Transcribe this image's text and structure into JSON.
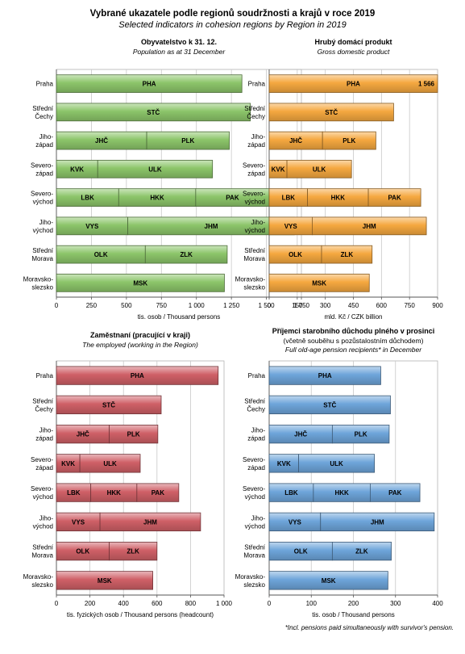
{
  "title": "Vybrané ukazatele podle regionů soudržnosti a krajů v roce 2019",
  "subtitle": "Selected indicators in cohesion regions by Region in 2019",
  "footnote": "*Incl. pensions paid simultaneously with survivor's pension.",
  "regions": [
    {
      "label": [
        "Praha"
      ]
    },
    {
      "label": [
        "Střední",
        "Čechy"
      ]
    },
    {
      "label": [
        "Jiho-",
        "západ"
      ]
    },
    {
      "label": [
        "Severo-",
        "západ"
      ]
    },
    {
      "label": [
        "Severo-",
        "východ"
      ]
    },
    {
      "label": [
        "Jiho-",
        "východ"
      ]
    },
    {
      "label": [
        "Střední",
        "Morava"
      ]
    },
    {
      "label": [
        "Moravsko-",
        "slezsko"
      ]
    }
  ],
  "chart_data": [
    {
      "type": "bar",
      "stacked": true,
      "title": "Obyvatelstvo k 31. 12.",
      "title_lines": [
        "Population as at 31 December"
      ],
      "xlabel": "tis. osob / Thousand persons",
      "xlim": [
        0,
        1750
      ],
      "xticks": [
        0,
        250,
        500,
        750,
        1000,
        1250,
        1500,
        1750
      ],
      "xtick_labels": [
        "0",
        "250",
        "500",
        "750",
        "1 000",
        "1 250",
        "1 500",
        "1 750"
      ],
      "color": "#8cc56a",
      "grid": true,
      "categories": [
        "Praha",
        "Střední Čechy",
        "Jihozápad",
        "Severozápad",
        "Severovýchod",
        "Jihovýchod",
        "Střední Morava",
        "Moravskoslezsko"
      ],
      "bars": [
        [
          {
            "code": "PHA",
            "value": 1325
          }
        ],
        [
          {
            "code": "STČ",
            "value": 1385
          }
        ],
        [
          {
            "code": "JHČ",
            "value": 645
          },
          {
            "code": "PLK",
            "value": 590
          }
        ],
        [
          {
            "code": "KVK",
            "value": 295
          },
          {
            "code": "ULK",
            "value": 820
          }
        ],
        [
          {
            "code": "LBK",
            "value": 445
          },
          {
            "code": "HKK",
            "value": 550
          },
          {
            "code": "PAK",
            "value": 525
          }
        ],
        [
          {
            "code": "VYS",
            "value": 510
          },
          {
            "code": "JHM",
            "value": 1190
          }
        ],
        [
          {
            "code": "OLK",
            "value": 635
          },
          {
            "code": "ZLK",
            "value": 585
          }
        ],
        [
          {
            "code": "MSK",
            "value": 1200
          }
        ]
      ]
    },
    {
      "type": "bar",
      "stacked": true,
      "title": "Hrubý domácí produkt",
      "title_lines": [
        "Gross domestic product"
      ],
      "xlabel": "mld. Kč / CZK billion",
      "xlim": [
        0,
        900
      ],
      "xticks": [
        0,
        150,
        300,
        450,
        600,
        750,
        900
      ],
      "xtick_labels": [
        "0",
        "150",
        "300",
        "450",
        "600",
        "750",
        "900"
      ],
      "color": "#f5a840",
      "grid": true,
      "categories": [
        "Praha",
        "Střední Čechy",
        "Jihozápad",
        "Severozápad",
        "Severovýchod",
        "Jihovýchod",
        "Střední Morava",
        "Moravskoslezsko"
      ],
      "bars": [
        [
          {
            "code": "PHA",
            "value": 1566,
            "value_label": "1 566"
          }
        ],
        [
          {
            "code": "STČ",
            "value": 665
          }
        ],
        [
          {
            "code": "JHČ",
            "value": 285
          },
          {
            "code": "PLK",
            "value": 285
          }
        ],
        [
          {
            "code": "KVK",
            "value": 95
          },
          {
            "code": "ULK",
            "value": 345
          }
        ],
        [
          {
            "code": "LBK",
            "value": 205
          },
          {
            "code": "HKK",
            "value": 325
          },
          {
            "code": "PAK",
            "value": 280
          }
        ],
        [
          {
            "code": "VYS",
            "value": 230
          },
          {
            "code": "JHM",
            "value": 610
          }
        ],
        [
          {
            "code": "OLK",
            "value": 280
          },
          {
            "code": "ZLK",
            "value": 270
          }
        ],
        [
          {
            "code": "MSK",
            "value": 535
          }
        ]
      ]
    },
    {
      "type": "bar",
      "stacked": true,
      "title": "Zaměstnaní (pracující v kraji)",
      "title_lines": [
        "The employed (working in the Region)"
      ],
      "xlabel": "tis. fyzických osob / Thousand persons (headcount)",
      "xlim": [
        0,
        1000
      ],
      "xticks": [
        0,
        200,
        400,
        600,
        800,
        1000
      ],
      "xtick_labels": [
        "0",
        "200",
        "400",
        "600",
        "800",
        "1 000"
      ],
      "color": "#cf6067",
      "grid": true,
      "categories": [
        "Praha",
        "Střední Čechy",
        "Jihozápad",
        "Severozápad",
        "Severovýchod",
        "Jihovýchod",
        "Střední Morava",
        "Moravskoslezsko"
      ],
      "bars": [
        [
          {
            "code": "PHA",
            "value": 965
          }
        ],
        [
          {
            "code": "STČ",
            "value": 625
          }
        ],
        [
          {
            "code": "JHČ",
            "value": 315
          },
          {
            "code": "PLK",
            "value": 290
          }
        ],
        [
          {
            "code": "KVK",
            "value": 140
          },
          {
            "code": "ULK",
            "value": 360
          }
        ],
        [
          {
            "code": "LBK",
            "value": 205
          },
          {
            "code": "HKK",
            "value": 275
          },
          {
            "code": "PAK",
            "value": 250
          }
        ],
        [
          {
            "code": "VYS",
            "value": 260
          },
          {
            "code": "JHM",
            "value": 600
          }
        ],
        [
          {
            "code": "OLK",
            "value": 315
          },
          {
            "code": "ZLK",
            "value": 285
          }
        ],
        [
          {
            "code": "MSK",
            "value": 575
          }
        ]
      ]
    },
    {
      "type": "bar",
      "stacked": true,
      "title": "Příjemci starobního důchodu plného v prosinci",
      "title_lines": [
        "(včetně souběhu s pozůstalostním důchodem)",
        "Full old-age pension recipients* in December"
      ],
      "xlabel": "tis. osob / Thousand persons",
      "xlim": [
        0,
        400
      ],
      "xticks": [
        0,
        100,
        200,
        300,
        400
      ],
      "xtick_labels": [
        "0",
        "100",
        "200",
        "300",
        "400"
      ],
      "color": "#6ea5da",
      "grid": true,
      "categories": [
        "Praha",
        "Střední Čechy",
        "Jihozápad",
        "Severozápad",
        "Severovýchod",
        "Jihovýchod",
        "Střední Morava",
        "Moravskoslezsko"
      ],
      "bars": [
        [
          {
            "code": "PHA",
            "value": 265
          }
        ],
        [
          {
            "code": "STČ",
            "value": 288
          }
        ],
        [
          {
            "code": "JHČ",
            "value": 150
          },
          {
            "code": "PLK",
            "value": 135
          }
        ],
        [
          {
            "code": "KVK",
            "value": 70
          },
          {
            "code": "ULK",
            "value": 180
          }
        ],
        [
          {
            "code": "LBK",
            "value": 105
          },
          {
            "code": "HKK",
            "value": 135
          },
          {
            "code": "PAK",
            "value": 118
          }
        ],
        [
          {
            "code": "VYS",
            "value": 122
          },
          {
            "code": "JHM",
            "value": 270
          }
        ],
        [
          {
            "code": "OLK",
            "value": 150
          },
          {
            "code": "ZLK",
            "value": 140
          }
        ],
        [
          {
            "code": "MSK",
            "value": 282
          }
        ]
      ]
    }
  ]
}
